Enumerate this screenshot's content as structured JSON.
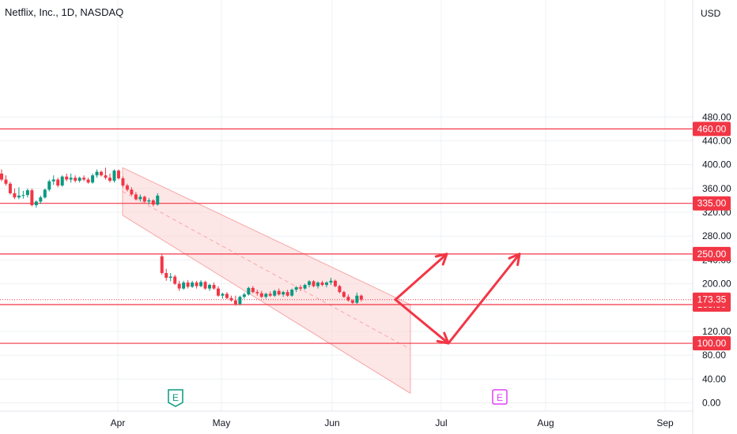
{
  "header": {
    "title": "Netflix, Inc., 1D, NASDAQ",
    "currency": "USD"
  },
  "colors": {
    "up": "#089981",
    "down": "#f23645",
    "level": "#f23645",
    "channel_fill": "#fbd5d5",
    "channel_line": "#f7a8a8",
    "arrow": "#f23645",
    "grid": "#eef0f3",
    "earnings_green": "#089981",
    "earnings_purple": "#e040fb"
  },
  "chart_data": {
    "type": "candlestick",
    "title": "Netflix, Inc., 1D, NASDAQ",
    "ylabel": "USD",
    "ylim": [
      0,
      500
    ],
    "y_ticks": [
      "480.00",
      "440.00",
      "400.00",
      "360.00",
      "320.00",
      "280.00",
      "240.00",
      "200.00",
      "120.00",
      "80.00",
      "40.00",
      "0.00"
    ],
    "x_ticks": [
      "Apr",
      "May",
      "Jun",
      "Jul",
      "Aug",
      "Sep"
    ],
    "horizontal_levels": [
      {
        "label": "460.00",
        "value": 460
      },
      {
        "label": "335.00",
        "value": 335
      },
      {
        "label": "250.00",
        "value": 250
      },
      {
        "label": "165.00",
        "value": 165
      },
      {
        "label": "100.00",
        "value": 100
      }
    ],
    "last_price": {
      "label": "173.35",
      "value": 173.35
    },
    "earnings_markers": [
      {
        "label": "E",
        "date": "Apr 19",
        "style": "reported"
      },
      {
        "label": "E",
        "date": "Jul 19",
        "style": "upcoming"
      }
    ],
    "candles": [
      {
        "o": 385,
        "h": 392,
        "l": 372,
        "c": 375
      },
      {
        "o": 375,
        "h": 382,
        "l": 365,
        "c": 368
      },
      {
        "o": 368,
        "h": 371,
        "l": 350,
        "c": 352
      },
      {
        "o": 352,
        "h": 360,
        "l": 342,
        "c": 345
      },
      {
        "o": 345,
        "h": 362,
        "l": 342,
        "c": 348
      },
      {
        "o": 348,
        "h": 356,
        "l": 343,
        "c": 349
      },
      {
        "o": 349,
        "h": 360,
        "l": 345,
        "c": 357
      },
      {
        "o": 357,
        "h": 360,
        "l": 330,
        "c": 332
      },
      {
        "o": 332,
        "h": 340,
        "l": 328,
        "c": 338
      },
      {
        "o": 338,
        "h": 348,
        "l": 334,
        "c": 345
      },
      {
        "o": 345,
        "h": 360,
        "l": 343,
        "c": 358
      },
      {
        "o": 358,
        "h": 375,
        "l": 355,
        "c": 372
      },
      {
        "o": 372,
        "h": 382,
        "l": 366,
        "c": 375
      },
      {
        "o": 375,
        "h": 378,
        "l": 362,
        "c": 365
      },
      {
        "o": 365,
        "h": 382,
        "l": 363,
        "c": 380
      },
      {
        "o": 380,
        "h": 385,
        "l": 372,
        "c": 375
      },
      {
        "o": 375,
        "h": 385,
        "l": 370,
        "c": 378
      },
      {
        "o": 378,
        "h": 382,
        "l": 370,
        "c": 373
      },
      {
        "o": 373,
        "h": 380,
        "l": 370,
        "c": 378
      },
      {
        "o": 378,
        "h": 382,
        "l": 372,
        "c": 375
      },
      {
        "o": 375,
        "h": 378,
        "l": 368,
        "c": 370
      },
      {
        "o": 370,
        "h": 385,
        "l": 368,
        "c": 382
      },
      {
        "o": 382,
        "h": 392,
        "l": 378,
        "c": 388
      },
      {
        "o": 388,
        "h": 390,
        "l": 380,
        "c": 382
      },
      {
        "o": 382,
        "h": 395,
        "l": 375,
        "c": 378
      },
      {
        "o": 378,
        "h": 385,
        "l": 370,
        "c": 373
      },
      {
        "o": 373,
        "h": 392,
        "l": 370,
        "c": 390
      },
      {
        "o": 390,
        "h": 392,
        "l": 375,
        "c": 377
      },
      {
        "o": 377,
        "h": 380,
        "l": 362,
        "c": 365
      },
      {
        "o": 365,
        "h": 368,
        "l": 355,
        "c": 358
      },
      {
        "o": 358,
        "h": 362,
        "l": 348,
        "c": 350
      },
      {
        "o": 350,
        "h": 354,
        "l": 340,
        "c": 342
      },
      {
        "o": 342,
        "h": 350,
        "l": 338,
        "c": 346
      },
      {
        "o": 346,
        "h": 348,
        "l": 335,
        "c": 338
      },
      {
        "o": 338,
        "h": 344,
        "l": 333,
        "c": 340
      },
      {
        "o": 340,
        "h": 342,
        "l": 330,
        "c": 333
      },
      {
        "o": 333,
        "h": 352,
        "l": 331,
        "c": 348
      },
      {
        "o": 246,
        "h": 250,
        "l": 215,
        "c": 218
      },
      {
        "o": 218,
        "h": 225,
        "l": 205,
        "c": 210
      },
      {
        "o": 210,
        "h": 218,
        "l": 204,
        "c": 212
      },
      {
        "o": 212,
        "h": 215,
        "l": 198,
        "c": 200
      },
      {
        "o": 200,
        "h": 205,
        "l": 188,
        "c": 192
      },
      {
        "o": 192,
        "h": 205,
        "l": 190,
        "c": 202
      },
      {
        "o": 202,
        "h": 206,
        "l": 192,
        "c": 195
      },
      {
        "o": 195,
        "h": 205,
        "l": 193,
        "c": 202
      },
      {
        "o": 202,
        "h": 205,
        "l": 192,
        "c": 196
      },
      {
        "o": 196,
        "h": 206,
        "l": 194,
        "c": 203
      },
      {
        "o": 203,
        "h": 205,
        "l": 190,
        "c": 192
      },
      {
        "o": 192,
        "h": 200,
        "l": 188,
        "c": 198
      },
      {
        "o": 198,
        "h": 202,
        "l": 190,
        "c": 192
      },
      {
        "o": 192,
        "h": 196,
        "l": 178,
        "c": 180
      },
      {
        "o": 180,
        "h": 185,
        "l": 175,
        "c": 183
      },
      {
        "o": 183,
        "h": 186,
        "l": 174,
        "c": 176
      },
      {
        "o": 176,
        "h": 180,
        "l": 170,
        "c": 172
      },
      {
        "o": 172,
        "h": 180,
        "l": 163,
        "c": 166
      },
      {
        "o": 166,
        "h": 180,
        "l": 164,
        "c": 178
      },
      {
        "o": 178,
        "h": 185,
        "l": 175,
        "c": 182
      },
      {
        "o": 182,
        "h": 195,
        "l": 180,
        "c": 193
      },
      {
        "o": 193,
        "h": 196,
        "l": 184,
        "c": 186
      },
      {
        "o": 186,
        "h": 190,
        "l": 180,
        "c": 184
      },
      {
        "o": 184,
        "h": 188,
        "l": 176,
        "c": 178
      },
      {
        "o": 178,
        "h": 185,
        "l": 175,
        "c": 183
      },
      {
        "o": 183,
        "h": 187,
        "l": 178,
        "c": 180
      },
      {
        "o": 180,
        "h": 190,
        "l": 178,
        "c": 188
      },
      {
        "o": 188,
        "h": 192,
        "l": 180,
        "c": 182
      },
      {
        "o": 182,
        "h": 188,
        "l": 178,
        "c": 186
      },
      {
        "o": 186,
        "h": 190,
        "l": 178,
        "c": 180
      },
      {
        "o": 180,
        "h": 192,
        "l": 178,
        "c": 190
      },
      {
        "o": 190,
        "h": 196,
        "l": 186,
        "c": 194
      },
      {
        "o": 194,
        "h": 198,
        "l": 188,
        "c": 192
      },
      {
        "o": 192,
        "h": 200,
        "l": 190,
        "c": 198
      },
      {
        "o": 198,
        "h": 206,
        "l": 194,
        "c": 204
      },
      {
        "o": 204,
        "h": 206,
        "l": 194,
        "c": 196
      },
      {
        "o": 196,
        "h": 204,
        "l": 192,
        "c": 202
      },
      {
        "o": 202,
        "h": 205,
        "l": 196,
        "c": 198
      },
      {
        "o": 198,
        "h": 204,
        "l": 194,
        "c": 202
      },
      {
        "o": 202,
        "h": 210,
        "l": 198,
        "c": 205
      },
      {
        "o": 205,
        "h": 207,
        "l": 194,
        "c": 196
      },
      {
        "o": 196,
        "h": 198,
        "l": 184,
        "c": 186
      },
      {
        "o": 186,
        "h": 188,
        "l": 176,
        "c": 178
      },
      {
        "o": 178,
        "h": 182,
        "l": 170,
        "c": 172
      },
      {
        "o": 172,
        "h": 174,
        "l": 166,
        "c": 168
      },
      {
        "o": 168,
        "h": 185,
        "l": 166,
        "c": 180
      },
      {
        "o": 180,
        "h": 182,
        "l": 170,
        "c": 173.35
      }
    ]
  }
}
